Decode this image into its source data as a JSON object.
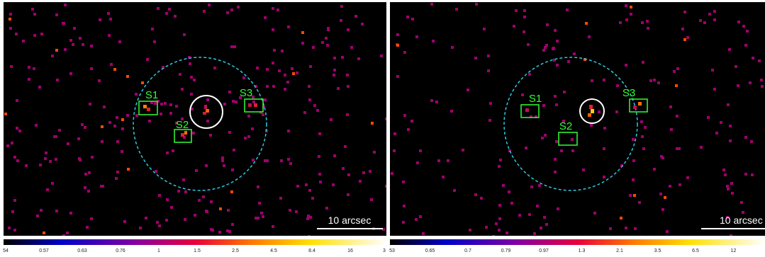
{
  "panels": [
    {
      "sources": [
        "S1",
        "S2",
        "S3"
      ],
      "scale_bar": "10 arcsec",
      "colorbar": [
        "54",
        "0.57",
        "0.63",
        "0.76",
        "1",
        "1.5",
        "2.5",
        "4.5",
        "8.4",
        "16",
        "3"
      ]
    },
    {
      "sources": [
        "S1",
        "S2",
        "S3"
      ],
      "scale_bar": "10 arcsec",
      "colorbar": [
        "53",
        "0.65",
        "0.7",
        "0.79",
        "0.97",
        "1.3",
        "2.1",
        "3.5",
        "6.5",
        "12"
      ]
    }
  ]
}
